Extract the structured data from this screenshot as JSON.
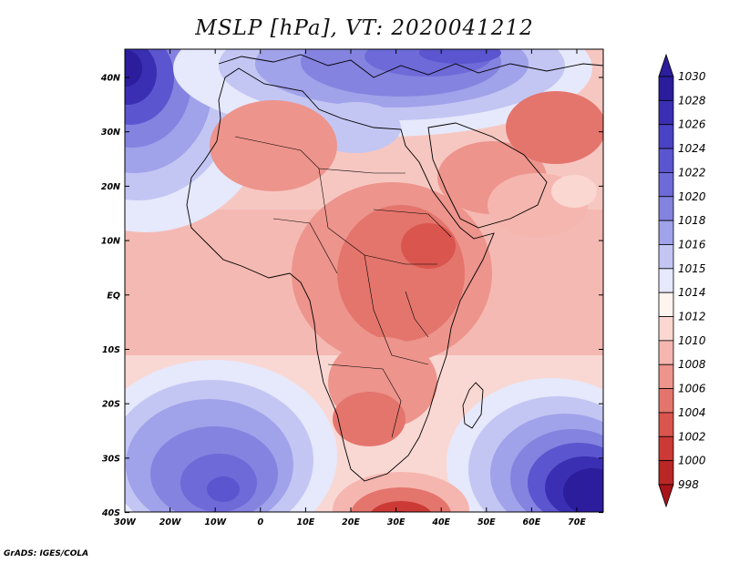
{
  "title": "MSLP [hPa], VT: 2020041212",
  "credit": "GrADS: IGES/COLA",
  "axes": {
    "lon_labels": [
      "30W",
      "20W",
      "10W",
      "0",
      "10E",
      "20E",
      "30E",
      "40E",
      "50E",
      "60E",
      "70E"
    ],
    "lat_labels": [
      "40N",
      "30N",
      "20N",
      "10N",
      "EQ",
      "10S",
      "20S",
      "30S",
      "40S"
    ]
  },
  "colorbar": {
    "levels": [
      "1030",
      "1028",
      "1026",
      "1024",
      "1022",
      "1020",
      "1018",
      "1016",
      "1015",
      "1014",
      "1012",
      "1010",
      "1008",
      "1006",
      "1004",
      "1002",
      "1000",
      "998"
    ],
    "colors": [
      "#2b1d9c",
      "#3a2fb3",
      "#4a42c4",
      "#5b55cf",
      "#6e6ad8",
      "#8483e0",
      "#a0a2ea",
      "#c3c6f3",
      "#e6e8fb",
      "#fff4f0",
      "#fbd7d2",
      "#f5b6af",
      "#ed948c",
      "#e4756c",
      "#da554e",
      "#cc3a36",
      "#b92726",
      "#a8141a"
    ]
  },
  "map": {
    "region": "Africa",
    "variable": "Mean sea level pressure",
    "units": "hPa",
    "features": {
      "high_northwest_atlantic": 1030,
      "high_south_atlantic": 1026,
      "high_south_indian": 1030,
      "high_mediterranean": 1022,
      "low_south_of_africa": 998,
      "low_east_africa": 1006
    }
  }
}
